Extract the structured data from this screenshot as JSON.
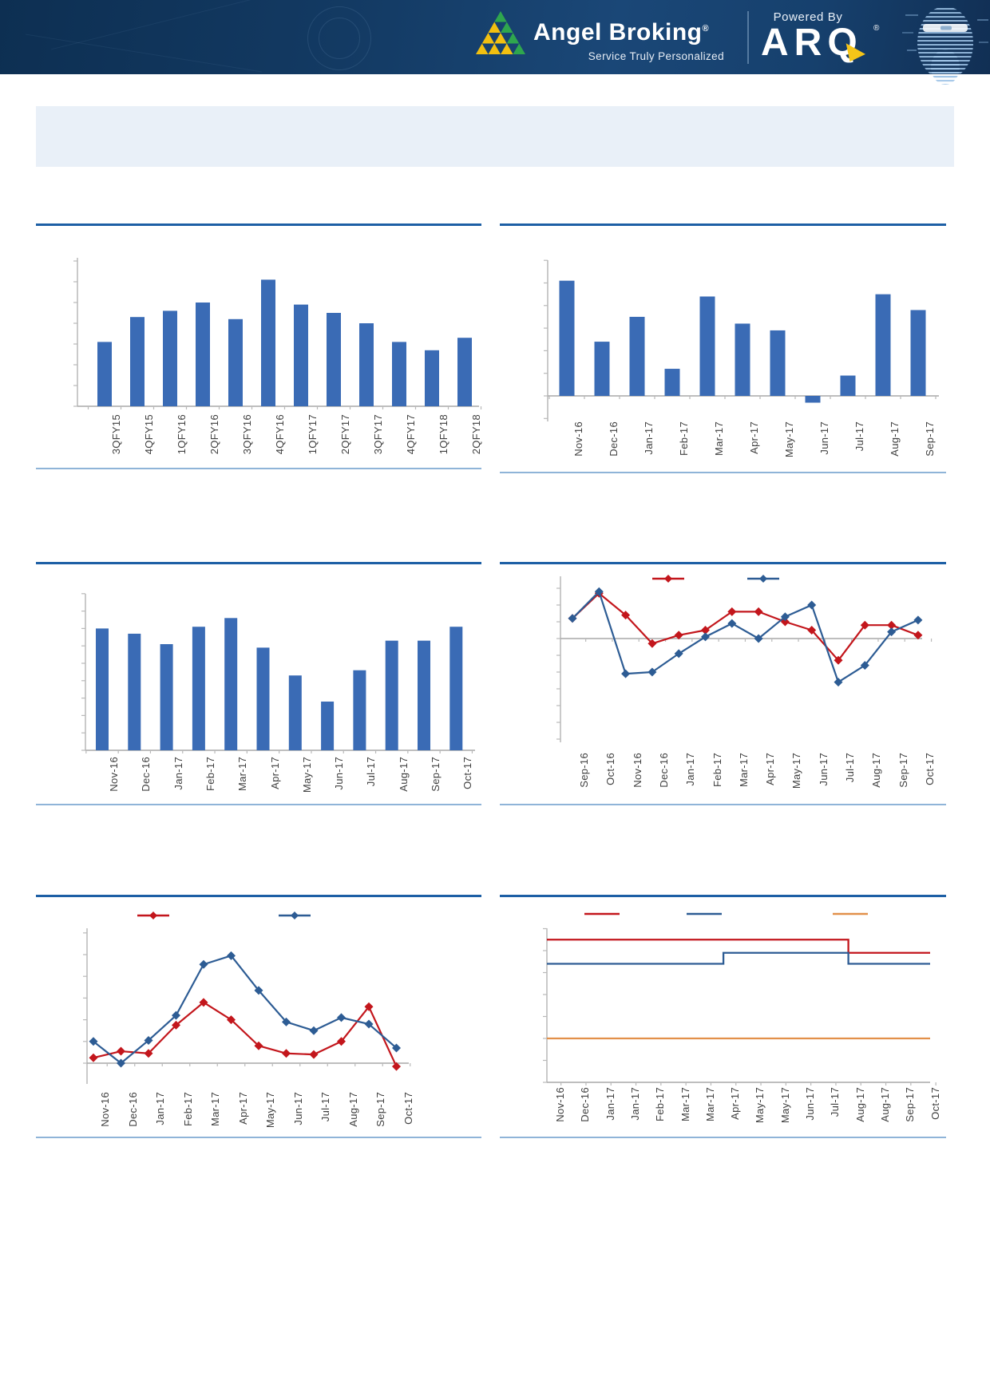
{
  "header": {
    "brand": "Angel Broking",
    "registered_mark": "®",
    "tagline": "Service Truly Personalized",
    "powered_by": "Powered By",
    "product": "ARQ",
    "colors": {
      "header_bg": "#13395f",
      "logo_green": "#2fa64e",
      "logo_yellow": "#f2c010",
      "arrow_yellow": "#f5c518"
    }
  },
  "banner": {
    "text": ""
  },
  "colors": {
    "bar": "#3a6bb5",
    "red": "#c3161c",
    "blue": "#2d5c94",
    "orange": "#e2904a",
    "axis": "#b9b9b9",
    "baseline": "#a8a8a8",
    "rule_dark": "#1d5fa5",
    "rule_light": "#8fb4d8",
    "label": "#3f3f3f",
    "banner_bg": "#e9f0f8"
  },
  "chart_data": [
    {
      "id": "c1",
      "type": "bar",
      "title": "",
      "categories": [
        "3QFY15",
        "4QFY15",
        "1QFY16",
        "2QFY16",
        "3QFY16",
        "4QFY16",
        "1QFY17",
        "2QFY17",
        "3QFY17",
        "4QFY17",
        "1QFY18",
        "2QFY18"
      ],
      "values": [
        3.1,
        4.3,
        4.6,
        5.0,
        4.2,
        6.1,
        4.9,
        4.5,
        4.0,
        3.1,
        2.7,
        3.3
      ],
      "bar_color": "#3a6bb5",
      "xlabel": "",
      "ylabel": "",
      "ylim": [
        0,
        7
      ],
      "y_axis_labels_visible": false,
      "units": "relative (axis tick labels not shown in image)",
      "grid": false
    },
    {
      "id": "c2",
      "type": "bar",
      "title": "",
      "categories": [
        "Nov-16",
        "Dec-16",
        "Jan-17",
        "Feb-17",
        "Mar-17",
        "Apr-17",
        "May-17",
        "Jun-17",
        "Jul-17",
        "Aug-17",
        "Sep-17"
      ],
      "values": [
        5.1,
        2.4,
        3.5,
        1.2,
        4.4,
        3.2,
        2.9,
        -0.3,
        0.9,
        4.5,
        3.8
      ],
      "bar_color": "#3a6bb5",
      "xlabel": "",
      "ylabel": "",
      "ylim": [
        -1,
        6
      ],
      "y_axis_labels_visible": false,
      "units": "relative (axis tick labels not shown in image)",
      "grid": false
    },
    {
      "id": "c3",
      "type": "bar",
      "title": "",
      "categories": [
        "Nov-16",
        "Dec-16",
        "Jan-17",
        "Feb-17",
        "Mar-17",
        "Apr-17",
        "May-17",
        "Jun-17",
        "Jul-17",
        "Aug-17",
        "Sep-17",
        "Oct-17"
      ],
      "values": [
        7.0,
        6.7,
        6.1,
        7.1,
        7.6,
        5.9,
        4.3,
        2.8,
        4.6,
        6.3,
        6.3,
        7.1
      ],
      "bar_color": "#3a6bb5",
      "xlabel": "",
      "ylabel": "",
      "ylim": [
        0,
        9
      ],
      "y_axis_labels_visible": false,
      "units": "relative (axis tick labels not shown in image)",
      "grid": false
    },
    {
      "id": "c4",
      "type": "line",
      "title": "",
      "categories": [
        "Sep-16",
        "Oct-16",
        "Nov-16",
        "Dec-16",
        "Jan-17",
        "Feb-17",
        "Mar-17",
        "Apr-17",
        "May-17",
        "Jun-17",
        "Jul-17",
        "Aug-17",
        "Sep-17",
        "Oct-17"
      ],
      "series": [
        {
          "name": "",
          "color": "#c3161c",
          "marker": "diamond",
          "values": [
            1.2,
            2.7,
            1.4,
            -0.3,
            0.2,
            0.5,
            1.6,
            1.6,
            1.0,
            0.5,
            -1.3,
            0.8,
            0.8,
            0.2
          ]
        },
        {
          "name": "",
          "color": "#2d5c94",
          "marker": "diamond",
          "values": [
            1.2,
            2.8,
            -2.1,
            -2.0,
            -0.9,
            0.1,
            0.9,
            0.0,
            1.3,
            2.0,
            -2.6,
            -1.6,
            0.4,
            1.1
          ]
        }
      ],
      "xlabel": "",
      "ylabel": "",
      "ylim": [
        -6.2,
        3.7
      ],
      "zero_line": true,
      "legend_position": "top",
      "legend_labels_visible": false,
      "y_axis_labels_visible": false,
      "units": "relative (axis tick labels not shown in image)",
      "grid": false
    },
    {
      "id": "c5",
      "type": "line",
      "title": "",
      "categories": [
        "Nov-16",
        "Dec-16",
        "Jan-17",
        "Feb-17",
        "Mar-17",
        "Apr-17",
        "May-17",
        "Jun-17",
        "Jul-17",
        "Aug-17",
        "Sep-17",
        "Oct-17"
      ],
      "series": [
        {
          "name": "",
          "color": "#c3161c",
          "marker": "diamond",
          "values": [
            0.25,
            0.55,
            0.45,
            1.75,
            2.8,
            2.0,
            0.8,
            0.45,
            0.4,
            1.0,
            2.6,
            -0.15
          ]
        },
        {
          "name": "",
          "color": "#2d5c94",
          "marker": "diamond",
          "values": [
            1.0,
            0.0,
            1.05,
            2.2,
            4.55,
            4.95,
            3.35,
            1.9,
            1.5,
            2.1,
            1.8,
            0.7
          ]
        }
      ],
      "xlabel": "",
      "ylabel": "",
      "ylim": [
        -1,
        6.2
      ],
      "legend_position": "top",
      "legend_labels_visible": false,
      "y_axis_labels_visible": false,
      "units": "relative (axis tick labels not shown in image)",
      "grid": false
    },
    {
      "id": "c6",
      "type": "line-step",
      "title": "",
      "categories": [
        "Nov-16",
        "Dec-16",
        "Jan-17",
        "Jan-17",
        "Feb-17",
        "Mar-17",
        "Mar-17",
        "Apr-17",
        "May-17",
        "May-17",
        "Jun-17",
        "Jul-17",
        "Aug-17",
        "Aug-17",
        "Sep-17",
        "Oct-17"
      ],
      "series": [
        {
          "name": "",
          "color": "#c3161c",
          "marker": "none",
          "values": [
            6.5,
            6.5,
            6.5,
            6.5,
            6.5,
            6.5,
            6.5,
            6.5,
            6.5,
            6.5,
            6.5,
            6.5,
            5.9,
            5.9,
            5.9,
            5.9
          ]
        },
        {
          "name": "",
          "color": "#2d5c94",
          "marker": "none",
          "values": [
            5.4,
            5.4,
            5.4,
            5.4,
            5.4,
            5.4,
            5.4,
            5.9,
            5.9,
            5.9,
            5.9,
            5.9,
            5.4,
            5.4,
            5.4,
            5.4
          ]
        },
        {
          "name": "",
          "color": "#e2904a",
          "marker": "none",
          "values": [
            2.0,
            2.0,
            2.0,
            2.0,
            2.0,
            2.0,
            2.0,
            2.0,
            2.0,
            2.0,
            2.0,
            2.0,
            2.0,
            2.0,
            2.0,
            2.0
          ]
        }
      ],
      "xlabel": "",
      "ylabel": "",
      "ylim": [
        0,
        8
      ],
      "legend_position": "top",
      "legend_labels_visible": false,
      "y_axis_labels_visible": false,
      "units": "relative (axis tick labels not shown in image)",
      "grid": false
    }
  ]
}
